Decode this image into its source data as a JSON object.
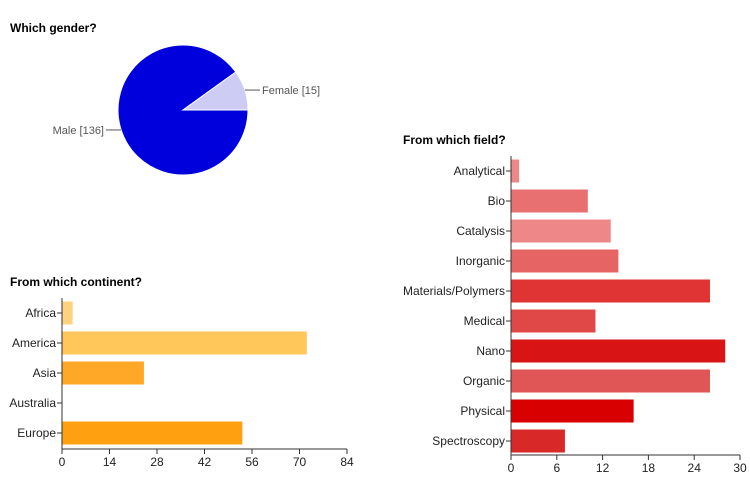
{
  "chart_data": [
    {
      "type": "pie",
      "title": "Which gender?",
      "categories": [
        "Male",
        "Female"
      ],
      "values": [
        136,
        15
      ],
      "labels": [
        "Male [136]",
        "Female [15]"
      ],
      "colors": [
        "#0000dd",
        "#ccccf5"
      ]
    },
    {
      "type": "bar",
      "orientation": "horizontal",
      "title": "From which continent?",
      "categories": [
        "Africa",
        "America",
        "Asia",
        "Australia",
        "Europe"
      ],
      "values": [
        3,
        72,
        24,
        0,
        53
      ],
      "colors": [
        "#ffd27f",
        "#ffc65a",
        "#ffa726",
        "#ffa726",
        "#ffa010"
      ],
      "xlim": [
        0,
        84
      ],
      "ticks": [
        "0",
        "14",
        "28",
        "42",
        "56",
        "70",
        "84"
      ]
    },
    {
      "type": "bar",
      "orientation": "horizontal",
      "title": "From which field?",
      "categories": [
        "Analytical",
        "Bio",
        "Catalysis",
        "Inorganic",
        "Materials/Polymers",
        "Medical",
        "Nano",
        "Organic",
        "Physical",
        "Spectroscopy"
      ],
      "values": [
        1,
        10,
        13,
        14,
        26,
        11,
        28,
        26,
        16,
        7
      ],
      "colors": [
        "#ee8888",
        "#e87070",
        "#ee8888",
        "#e66464",
        "#e03333",
        "#e04848",
        "#d81414",
        "#e05555",
        "#d80000",
        "#d82828"
      ],
      "xlim": [
        0,
        30
      ],
      "ticks": [
        "0",
        "6",
        "12",
        "18",
        "24",
        "30"
      ]
    }
  ]
}
